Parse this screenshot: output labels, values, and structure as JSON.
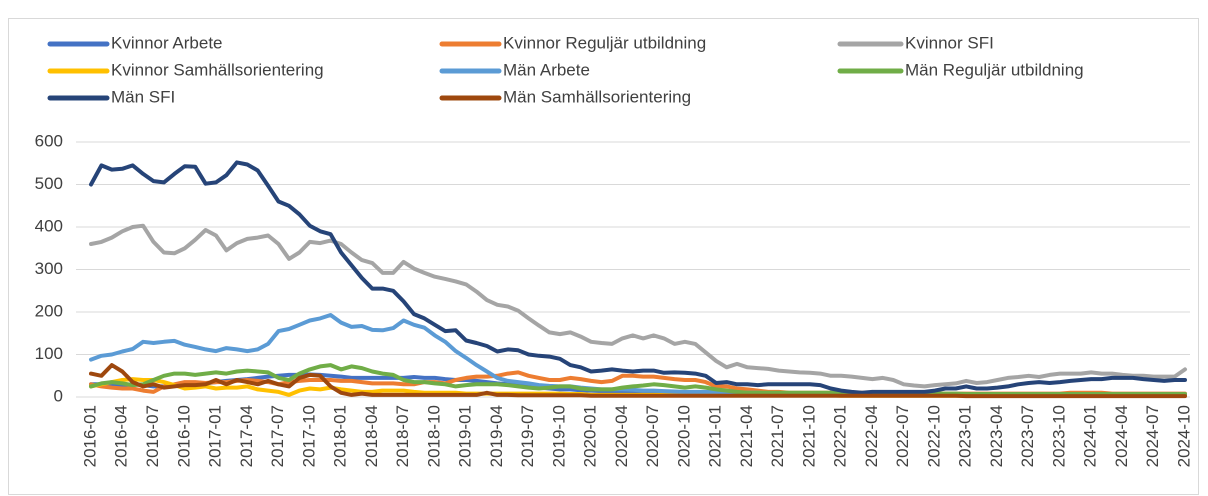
{
  "chart_data": {
    "type": "line",
    "categories": [
      "2016-01",
      null,
      null,
      "2016-04",
      null,
      null,
      "2016-07",
      null,
      null,
      "2016-10",
      null,
      null,
      "2017-01",
      null,
      null,
      "2017-04",
      null,
      null,
      "2017-07",
      null,
      null,
      "2017-10",
      null,
      null,
      "2018-01",
      null,
      null,
      "2018-04",
      null,
      null,
      "2018-07",
      null,
      null,
      "2018-10",
      null,
      null,
      "2019-01",
      null,
      null,
      "2019-04",
      null,
      null,
      "2019-07",
      null,
      null,
      "2019-10",
      null,
      null,
      "2020-01",
      null,
      null,
      "2020-04",
      null,
      null,
      "2020-07",
      null,
      null,
      "2020-10",
      null,
      null,
      "2021-01",
      null,
      null,
      "2021-04",
      null,
      null,
      "2021-07",
      null,
      null,
      "2021-10",
      null,
      null,
      "2022-01",
      null,
      null,
      "2022-04",
      null,
      null,
      "2022-07",
      null,
      null,
      "2022-10",
      null,
      null,
      "2023-01",
      null,
      null,
      "2023-04",
      null,
      null,
      "2023-07",
      null,
      null,
      "2023-10",
      null,
      null,
      "2024-01",
      null,
      null,
      "2024-04",
      null,
      null,
      "2024-07",
      null,
      null,
      "2024-10"
    ],
    "series": [
      {
        "name": "Kvinnor Arbete",
        "color": "#4472c4",
        "values": [
          30,
          30,
          28,
          28,
          30,
          28,
          25,
          25,
          28,
          30,
          30,
          32,
          35,
          38,
          40,
          42,
          45,
          48,
          50,
          52,
          52,
          53,
          52,
          50,
          48,
          45,
          45,
          45,
          45,
          45,
          45,
          47,
          45,
          45,
          42,
          40,
          40,
          38,
          35,
          32,
          30,
          28,
          25,
          22,
          20,
          18,
          18,
          16,
          15,
          14,
          14,
          13,
          13,
          12,
          12,
          12,
          11,
          11,
          11,
          10,
          10,
          9,
          9,
          9,
          8,
          8,
          8,
          8,
          8,
          7,
          7,
          7,
          6,
          6,
          6,
          6,
          6,
          6,
          6,
          5,
          5,
          5,
          5,
          5,
          5,
          5,
          5,
          5,
          5,
          5,
          5,
          5,
          5,
          5,
          5,
          5,
          5,
          5,
          5,
          5,
          5,
          5,
          5,
          5,
          5,
          5
        ]
      },
      {
        "name": "Kvinnor Reguljär utbildning",
        "color": "#ed7d31",
        "values": [
          30,
          25,
          22,
          20,
          20,
          15,
          12,
          25,
          30,
          35,
          35,
          33,
          35,
          35,
          38,
          40,
          38,
          35,
          30,
          35,
          38,
          40,
          40,
          40,
          38,
          38,
          35,
          32,
          32,
          32,
          30,
          30,
          35,
          35,
          32,
          40,
          45,
          48,
          48,
          50,
          55,
          58,
          50,
          45,
          40,
          40,
          45,
          42,
          38,
          35,
          38,
          50,
          50,
          48,
          48,
          45,
          42,
          40,
          40,
          35,
          25,
          25,
          20,
          18,
          15,
          12,
          12,
          10,
          10,
          10,
          10,
          10,
          10,
          10,
          10,
          9,
          9,
          8,
          8,
          8,
          8,
          8,
          8,
          8,
          8,
          8,
          8,
          8,
          8,
          8,
          8,
          8,
          8,
          8,
          10,
          10,
          10,
          10,
          8,
          8,
          8,
          8,
          8,
          8,
          8,
          8
        ]
      },
      {
        "name": "Kvinnor SFI",
        "color": "#a5a5a5",
        "values": [
          360,
          365,
          375,
          390,
          400,
          403,
          365,
          340,
          338,
          350,
          370,
          393,
          380,
          345,
          362,
          372,
          375,
          380,
          360,
          325,
          340,
          365,
          362,
          368,
          360,
          340,
          322,
          315,
          292,
          292,
          318,
          302,
          292,
          283,
          278,
          272,
          265,
          248,
          228,
          217,
          213,
          203,
          185,
          168,
          152,
          148,
          152,
          142,
          130,
          127,
          125,
          138,
          145,
          138,
          145,
          138,
          125,
          130,
          125,
          105,
          85,
          70,
          78,
          70,
          68,
          66,
          62,
          60,
          58,
          57,
          55,
          50,
          50,
          48,
          45,
          42,
          45,
          40,
          30,
          27,
          25,
          28,
          30,
          32,
          38,
          33,
          35,
          40,
          45,
          47,
          50,
          47,
          52,
          55,
          55,
          55,
          58,
          55,
          55,
          52,
          50,
          50,
          48,
          48,
          48,
          65
        ]
      },
      {
        "name": "Kvinnor Samhällsorientering",
        "color": "#ffc000",
        "values": [
          25,
          30,
          35,
          40,
          42,
          40,
          40,
          35,
          28,
          20,
          22,
          25,
          20,
          22,
          22,
          25,
          18,
          15,
          12,
          5,
          15,
          20,
          18,
          22,
          18,
          15,
          12,
          12,
          15,
          15,
          15,
          12,
          10,
          10,
          10,
          10,
          8,
          8,
          8,
          8,
          8,
          8,
          8,
          8,
          8,
          8,
          7,
          7,
          5,
          5,
          5,
          5,
          5,
          5,
          5,
          5,
          5,
          5,
          5,
          5,
          4,
          4,
          4,
          4,
          4,
          4,
          4,
          4,
          4,
          4,
          4,
          4,
          3,
          3,
          3,
          3,
          3,
          3,
          3,
          3,
          3,
          3,
          3,
          3,
          3,
          3,
          3,
          3,
          3,
          3,
          3,
          3,
          3,
          3,
          3,
          3,
          3,
          3,
          3,
          3,
          3,
          3,
          3,
          3,
          3,
          3
        ]
      },
      {
        "name": "Män Arbete",
        "color": "#5b9bd5",
        "values": [
          88,
          97,
          100,
          107,
          113,
          130,
          127,
          130,
          132,
          123,
          118,
          112,
          108,
          115,
          112,
          108,
          112,
          125,
          155,
          160,
          170,
          180,
          185,
          193,
          175,
          165,
          167,
          158,
          157,
          162,
          180,
          170,
          163,
          145,
          130,
          108,
          92,
          75,
          60,
          45,
          38,
          35,
          32,
          28,
          26,
          25,
          25,
          22,
          20,
          18,
          18,
          18,
          17,
          15,
          15,
          14,
          13,
          12,
          12,
          12,
          12,
          11,
          10,
          10,
          10,
          9,
          9,
          9,
          9,
          8,
          8,
          8,
          8,
          8,
          7,
          7,
          7,
          7,
          7,
          7,
          6,
          6,
          6,
          6,
          6,
          6,
          6,
          6,
          6,
          6,
          6,
          6,
          6,
          6,
          6,
          6,
          6,
          6,
          6,
          6,
          6,
          6,
          6,
          6,
          6,
          6
        ]
      },
      {
        "name": "Män Reguljär utbildning",
        "color": "#70ad47",
        "values": [
          25,
          32,
          35,
          32,
          28,
          30,
          40,
          50,
          55,
          55,
          52,
          55,
          58,
          55,
          60,
          62,
          60,
          58,
          45,
          40,
          55,
          65,
          72,
          75,
          65,
          72,
          68,
          60,
          55,
          52,
          40,
          35,
          35,
          32,
          30,
          25,
          28,
          30,
          30,
          30,
          28,
          25,
          22,
          20,
          22,
          25,
          25,
          20,
          18,
          18,
          18,
          22,
          25,
          27,
          30,
          28,
          25,
          22,
          25,
          22,
          18,
          15,
          12,
          10,
          10,
          10,
          10,
          10,
          10,
          10,
          10,
          10,
          8,
          8,
          8,
          8,
          8,
          8,
          8,
          8,
          8,
          8,
          8,
          8,
          7,
          7,
          7,
          7,
          7,
          7,
          7,
          7,
          7,
          7,
          7,
          7,
          7,
          7,
          7,
          7,
          7,
          7,
          7,
          7,
          7,
          7
        ]
      },
      {
        "name": "Män SFI",
        "color": "#264478",
        "values": [
          500,
          545,
          535,
          537,
          545,
          525,
          508,
          505,
          525,
          543,
          542,
          502,
          505,
          522,
          552,
          547,
          533,
          497,
          460,
          450,
          430,
          403,
          390,
          383,
          340,
          310,
          280,
          255,
          255,
          250,
          225,
          195,
          185,
          170,
          155,
          157,
          133,
          127,
          120,
          107,
          112,
          110,
          100,
          97,
          95,
          90,
          75,
          70,
          60,
          62,
          65,
          62,
          60,
          62,
          62,
          57,
          58,
          57,
          55,
          50,
          33,
          35,
          30,
          30,
          28,
          30,
          30,
          30,
          30,
          30,
          28,
          20,
          15,
          12,
          10,
          12,
          12,
          12,
          12,
          12,
          12,
          15,
          20,
          20,
          25,
          20,
          20,
          22,
          25,
          30,
          33,
          35,
          33,
          35,
          38,
          40,
          42,
          42,
          45,
          45,
          45,
          42,
          40,
          38,
          40,
          40
        ]
      },
      {
        "name": "Män Samhällsorientering",
        "color": "#9e480e",
        "values": [
          55,
          50,
          75,
          60,
          35,
          25,
          30,
          22,
          25,
          28,
          28,
          30,
          40,
          30,
          40,
          35,
          30,
          38,
          30,
          25,
          45,
          52,
          50,
          25,
          10,
          5,
          8,
          5,
          5,
          5,
          5,
          5,
          5,
          5,
          5,
          5,
          5,
          5,
          10,
          5,
          5,
          4,
          4,
          4,
          4,
          4,
          4,
          4,
          3,
          3,
          3,
          3,
          3,
          3,
          3,
          3,
          3,
          3,
          3,
          3,
          3,
          3,
          3,
          3,
          3,
          3,
          3,
          3,
          3,
          3,
          3,
          3,
          3,
          3,
          3,
          3,
          3,
          3,
          3,
          3,
          3,
          3,
          3,
          3,
          2,
          2,
          2,
          2,
          2,
          2,
          2,
          2,
          2,
          2,
          2,
          2,
          2,
          2,
          2,
          2,
          2,
          2,
          2,
          2,
          2,
          2
        ]
      }
    ],
    "ylim": [
      0,
      600
    ],
    "yticks": [
      0,
      100,
      200,
      300,
      400,
      500,
      600
    ],
    "grid": true,
    "legend": "top"
  }
}
